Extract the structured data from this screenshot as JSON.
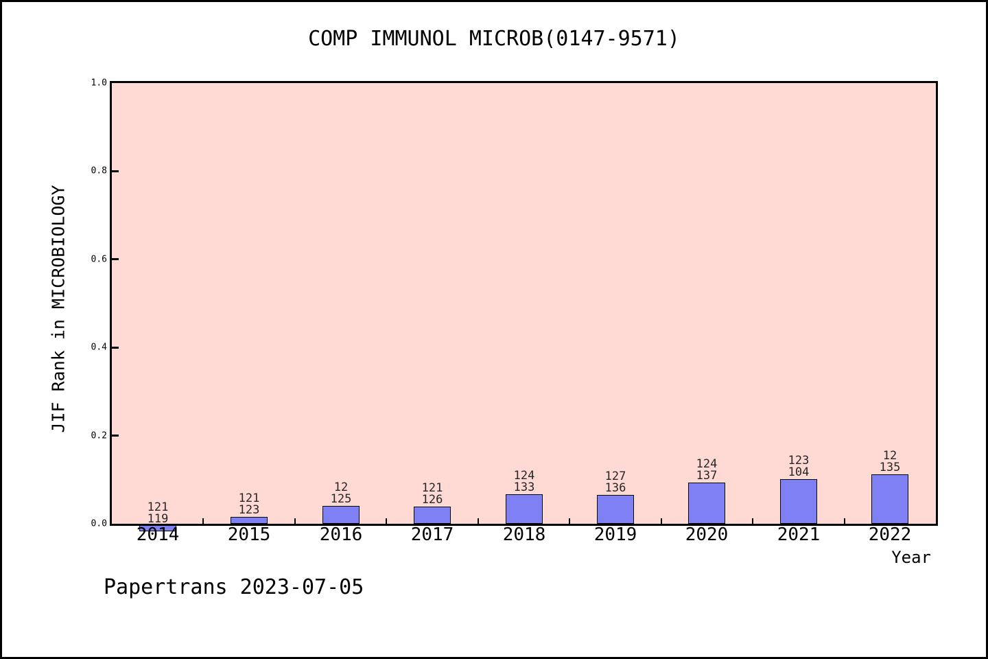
{
  "page": {
    "background": "#ffffff",
    "border_color": "#000000"
  },
  "chart_data": {
    "type": "bar",
    "title": "COMP IMMUNOL MICROB(0147-9571)",
    "xlabel": "Year",
    "ylabel": "JIF Rank in MICROBIOLOGY",
    "ylim": [
      0.0,
      1.0
    ],
    "yticks": [
      "0.0",
      "0.2",
      "0.4",
      "0.6",
      "0.8",
      "1.0"
    ],
    "categories": [
      "2014",
      "2015",
      "2016",
      "2017",
      "2018",
      "2019",
      "2020",
      "2021",
      "2022"
    ],
    "values": [
      -0.017,
      0.016,
      0.04,
      0.039,
      0.067,
      0.066,
      0.094,
      0.102,
      0.112
    ],
    "bar_labels": [
      [
        "121",
        "119"
      ],
      [
        "121",
        "123"
      ],
      [
        "12",
        "125"
      ],
      [
        "121",
        "126"
      ],
      [
        "124",
        "133"
      ],
      [
        "127",
        "136"
      ],
      [
        "124",
        "137"
      ],
      [
        "123",
        "104"
      ],
      [
        "12",
        "135"
      ]
    ],
    "bar_color": "#8080f5",
    "bar_edge_color": "#000000",
    "plot_background": "#ffd9d3",
    "axis_color": "#000000",
    "grid": false,
    "legend": null
  },
  "footer": {
    "text": "Papertrans 2023-07-05"
  }
}
